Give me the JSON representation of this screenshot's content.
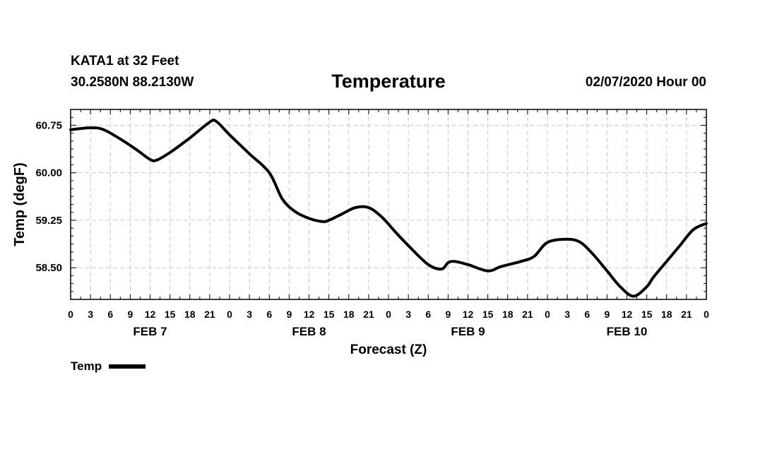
{
  "header": {
    "station": "KATA1 at 32 Feet",
    "coords": "30.2580N 88.2130W",
    "title": "Temperature",
    "runtime": "02/07/2020 Hour 00"
  },
  "chart_data": {
    "type": "line",
    "title": "Temperature",
    "xlabel": "Forecast (Z)",
    "ylabel": "Temp (degF)",
    "ylim": [
      58.0,
      61.0
    ],
    "yticks": [
      58.5,
      59.25,
      60.0,
      60.75
    ],
    "ytick_labels": [
      "58.50",
      "59.25",
      "60.00",
      "60.75"
    ],
    "xlim": [
      0,
      96
    ],
    "xtick_hours": [
      0,
      3,
      6,
      9,
      12,
      15,
      18,
      21,
      24,
      27,
      30,
      33,
      36,
      39,
      42,
      45,
      48,
      51,
      54,
      57,
      60,
      63,
      66,
      69,
      72,
      75,
      78,
      81,
      84,
      87,
      90,
      93,
      96
    ],
    "xtick_labels": [
      "0",
      "3",
      "6",
      "9",
      "12",
      "15",
      "18",
      "21",
      "0",
      "3",
      "6",
      "9",
      "12",
      "15",
      "18",
      "21",
      "0",
      "3",
      "6",
      "9",
      "12",
      "15",
      "18",
      "21",
      "0",
      "3",
      "6",
      "9",
      "12",
      "15",
      "18",
      "21",
      "0"
    ],
    "day_labels": [
      {
        "hour": 12,
        "label": "FEB 7"
      },
      {
        "hour": 36,
        "label": "FEB 8"
      },
      {
        "hour": 60,
        "label": "FEB 9"
      },
      {
        "hour": 84,
        "label": "FEB 10"
      }
    ],
    "grid": true,
    "series": [
      {
        "name": "Temp",
        "color": "#000000",
        "x": [
          0,
          3,
          5,
          8,
          10,
          12,
          13,
          15,
          18,
          21,
          22,
          24,
          27,
          30,
          32,
          34,
          36,
          38,
          39,
          41,
          43,
          45,
          47,
          49,
          51,
          54,
          56,
          57,
          58,
          60,
          63,
          65,
          68,
          70,
          72,
          75,
          77,
          79,
          81,
          83,
          85,
          87,
          88,
          90,
          92,
          94,
          96
        ],
        "y": [
          60.68,
          60.71,
          60.68,
          60.5,
          60.36,
          60.21,
          60.2,
          60.32,
          60.55,
          60.8,
          60.81,
          60.6,
          60.3,
          60.0,
          59.58,
          59.38,
          59.28,
          59.23,
          59.25,
          59.35,
          59.45,
          59.45,
          59.3,
          59.07,
          58.85,
          58.55,
          58.48,
          58.58,
          58.6,
          58.55,
          58.45,
          58.52,
          58.6,
          58.68,
          58.9,
          58.95,
          58.9,
          58.7,
          58.45,
          58.2,
          58.05,
          58.2,
          58.35,
          58.6,
          58.85,
          59.1,
          59.2
        ]
      }
    ],
    "legend": {
      "label": "Temp",
      "position": "bottom-left"
    }
  }
}
